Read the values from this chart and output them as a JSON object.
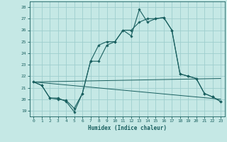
{
  "xlabel": "Humidex (Indice chaleur)",
  "xlim": [
    -0.5,
    23.5
  ],
  "ylim": [
    18.5,
    28.5
  ],
  "yticks": [
    19,
    20,
    21,
    22,
    23,
    24,
    25,
    26,
    27,
    28
  ],
  "xticks": [
    0,
    1,
    2,
    3,
    4,
    5,
    6,
    7,
    8,
    9,
    10,
    11,
    12,
    13,
    14,
    15,
    16,
    17,
    18,
    19,
    20,
    21,
    22,
    23
  ],
  "bg_color": "#c5e8e5",
  "grid_color": "#9ecece",
  "line_color": "#1a6060",
  "line1": [
    [
      0,
      21.5
    ],
    [
      1,
      21.2
    ],
    [
      2,
      20.1
    ],
    [
      3,
      20.1
    ],
    [
      4,
      19.8
    ],
    [
      5,
      18.9
    ],
    [
      6,
      20.5
    ],
    [
      7,
      23.3
    ],
    [
      8,
      23.3
    ],
    [
      9,
      24.7
    ],
    [
      10,
      25.0
    ],
    [
      11,
      26.0
    ],
    [
      12,
      25.5
    ],
    [
      13,
      27.8
    ],
    [
      14,
      26.7
    ],
    [
      15,
      27.0
    ],
    [
      16,
      27.1
    ],
    [
      17,
      26.0
    ],
    [
      18,
      22.2
    ],
    [
      19,
      22.0
    ],
    [
      20,
      21.8
    ],
    [
      21,
      20.5
    ],
    [
      22,
      20.2
    ],
    [
      23,
      19.8
    ]
  ],
  "line2": [
    [
      0,
      21.5
    ],
    [
      1,
      21.2
    ],
    [
      2,
      20.1
    ],
    [
      3,
      20.0
    ],
    [
      4,
      19.9
    ],
    [
      5,
      19.2
    ],
    [
      6,
      20.5
    ],
    [
      7,
      23.3
    ],
    [
      8,
      24.7
    ],
    [
      9,
      25.0
    ],
    [
      10,
      25.0
    ],
    [
      11,
      26.0
    ],
    [
      12,
      26.0
    ],
    [
      13,
      26.7
    ],
    [
      14,
      27.0
    ],
    [
      15,
      27.0
    ],
    [
      16,
      27.1
    ],
    [
      17,
      26.0
    ],
    [
      18,
      22.2
    ],
    [
      19,
      22.0
    ],
    [
      20,
      21.8
    ],
    [
      21,
      20.5
    ],
    [
      22,
      20.2
    ],
    [
      23,
      19.8
    ]
  ],
  "line3": [
    [
      0,
      21.5
    ],
    [
      23,
      20.0
    ]
  ],
  "line4": [
    [
      0,
      21.5
    ],
    [
      23,
      21.8
    ]
  ]
}
